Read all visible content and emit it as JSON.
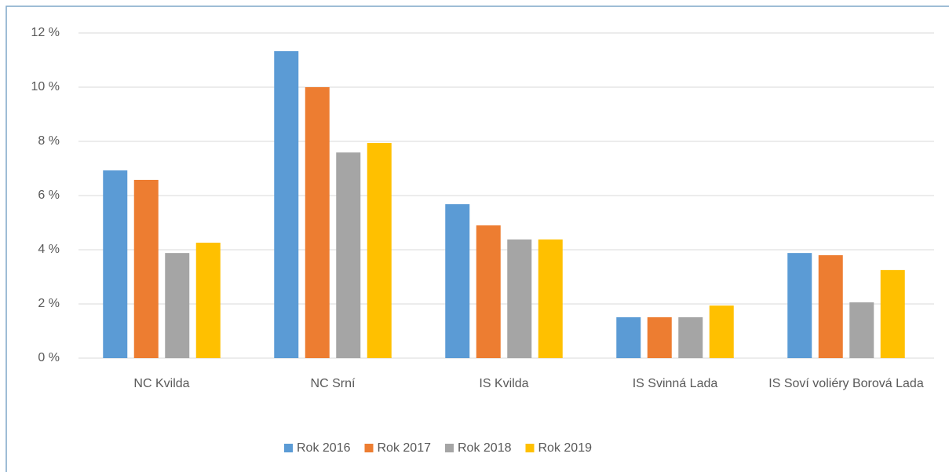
{
  "chart_data": {
    "type": "bar",
    "categories": [
      "NC Kvilda",
      "NC Srní",
      "IS Kvilda",
      "IS Svinná Lada",
      "IS Soví voliéry Borová Lada"
    ],
    "series": [
      {
        "name": "Rok 2016",
        "color": "#5b9bd5",
        "values": [
          6.93,
          11.33,
          5.68,
          1.51,
          3.88
        ]
      },
      {
        "name": "Rok 2017",
        "color": "#ed7d31",
        "values": [
          6.58,
          10.0,
          4.9,
          1.51,
          3.8
        ]
      },
      {
        "name": "Rok 2018",
        "color": "#a5a5a5",
        "values": [
          3.88,
          7.59,
          4.38,
          1.51,
          2.06
        ]
      },
      {
        "name": "Rok 2019",
        "color": "#ffc000",
        "values": [
          4.26,
          7.94,
          4.38,
          1.94,
          3.25
        ]
      }
    ],
    "ylim": [
      0,
      12
    ],
    "yticks": [
      {
        "value": 0,
        "label": "0 %"
      },
      {
        "value": 2,
        "label": "2 %"
      },
      {
        "value": 4,
        "label": "4 %"
      },
      {
        "value": 6,
        "label": "6 %"
      },
      {
        "value": 8,
        "label": "8 %"
      },
      {
        "value": 10,
        "label": "10 %"
      },
      {
        "value": 12,
        "label": "12 %"
      }
    ],
    "grid": true,
    "legend": "bottom"
  }
}
